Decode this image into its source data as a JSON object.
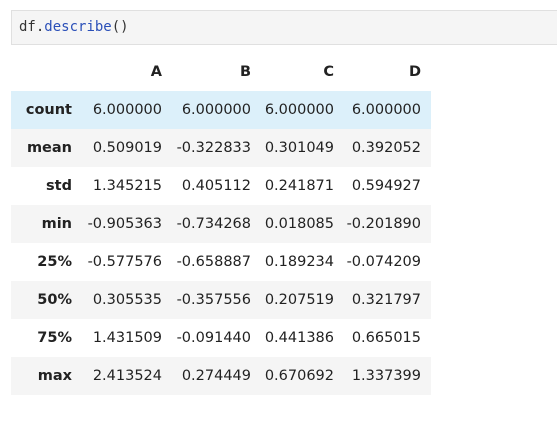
{
  "cell": {
    "code_object": "df",
    "code_dot": ".",
    "code_method": "describe",
    "code_parens": "()"
  },
  "table": {
    "columns": [
      "A",
      "B",
      "C",
      "D"
    ],
    "rows": [
      {
        "label": "count",
        "values": [
          "6.000000",
          "6.000000",
          "6.000000",
          "6.000000"
        ]
      },
      {
        "label": "mean",
        "values": [
          "0.509019",
          "-0.322833",
          "0.301049",
          "0.392052"
        ]
      },
      {
        "label": "std",
        "values": [
          "1.345215",
          "0.405112",
          "0.241871",
          "0.594927"
        ]
      },
      {
        "label": "min",
        "values": [
          "-0.905363",
          "-0.734268",
          "0.018085",
          "-0.201890"
        ]
      },
      {
        "label": "25%",
        "values": [
          "-0.577576",
          "-0.658887",
          "0.189234",
          "-0.074209"
        ]
      },
      {
        "label": "50%",
        "values": [
          "0.305535",
          "-0.357556",
          "0.207519",
          "0.321797"
        ]
      },
      {
        "label": "75%",
        "values": [
          "1.431509",
          "-0.091440",
          "0.441386",
          "0.665015"
        ]
      },
      {
        "label": "max",
        "values": [
          "2.413524",
          "0.274449",
          "0.670692",
          "1.337399"
        ]
      }
    ]
  },
  "colors": {
    "code_background": "#f5f5f5",
    "method_color": "#2a4fb8",
    "row_stripe": "#f5f5f5",
    "row_hover": "#dcf0fa"
  }
}
